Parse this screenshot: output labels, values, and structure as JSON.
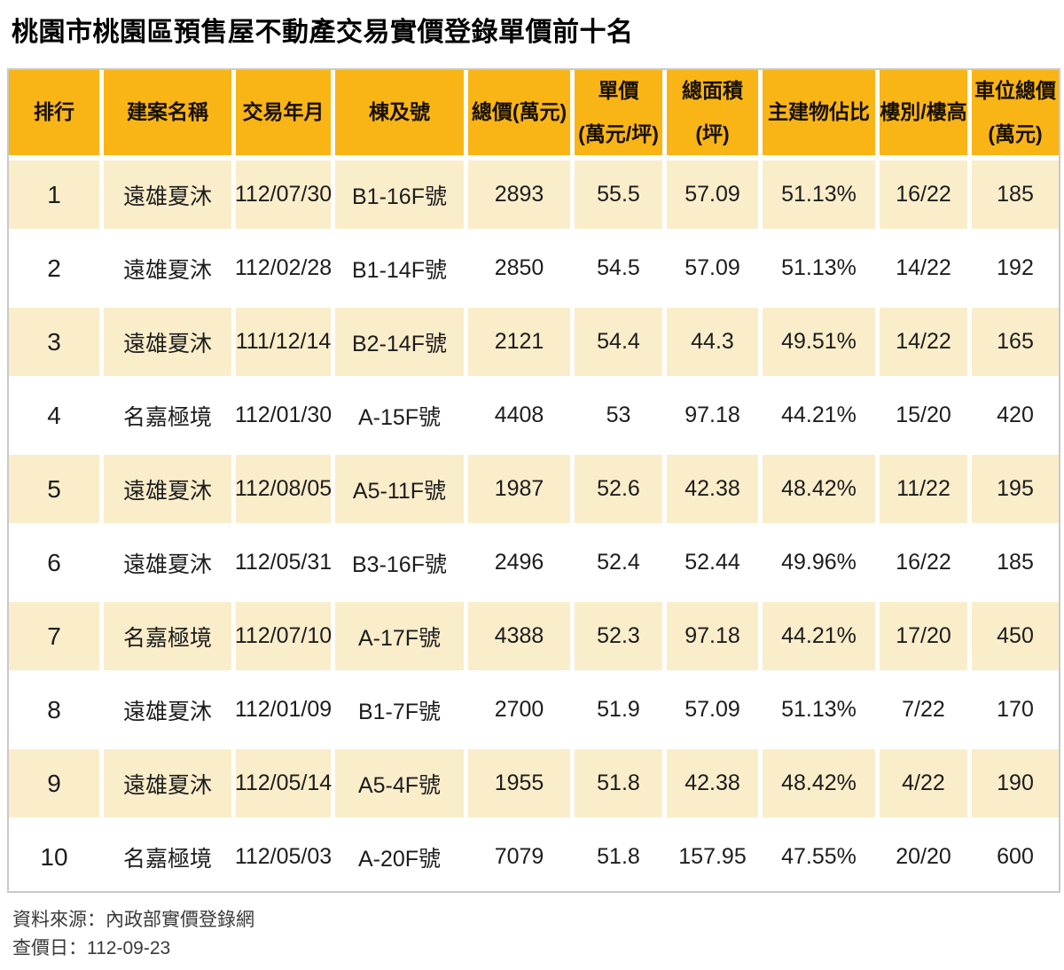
{
  "chart_data": {
    "type": "table",
    "title": "桃園市桃園區預售屋不動產交易實價登錄單價前十名",
    "columns": [
      "排行",
      "建案名稱",
      "交易年月",
      "棟及號",
      "總價(萬元)",
      "單價\n(萬元/坪)",
      "總面積\n(坪)",
      "主建物佔比",
      "樓別/樓高",
      "車位總價\n(萬元)"
    ],
    "rows": [
      [
        "1",
        "遠雄夏沐",
        "112/07/30",
        "B1-16F號",
        "2893",
        "55.5",
        "57.09",
        "51.13%",
        "16/22",
        "185"
      ],
      [
        "2",
        "遠雄夏沐",
        "112/02/28",
        "B1-14F號",
        "2850",
        "54.5",
        "57.09",
        "51.13%",
        "14/22",
        "192"
      ],
      [
        "3",
        "遠雄夏沐",
        "111/12/14",
        "B2-14F號",
        "2121",
        "54.4",
        "44.3",
        "49.51%",
        "14/22",
        "165"
      ],
      [
        "4",
        "名嘉極境",
        "112/01/30",
        "A-15F號",
        "4408",
        "53",
        "97.18",
        "44.21%",
        "15/20",
        "420"
      ],
      [
        "5",
        "遠雄夏沐",
        "112/08/05",
        "A5-11F號",
        "1987",
        "52.6",
        "42.38",
        "48.42%",
        "11/22",
        "195"
      ],
      [
        "6",
        "遠雄夏沐",
        "112/05/31",
        "B3-16F號",
        "2496",
        "52.4",
        "52.44",
        "49.96%",
        "16/22",
        "185"
      ],
      [
        "7",
        "名嘉極境",
        "112/07/10",
        "A-17F號",
        "4388",
        "52.3",
        "97.18",
        "44.21%",
        "17/20",
        "450"
      ],
      [
        "8",
        "遠雄夏沐",
        "112/01/09",
        "B1-7F號",
        "2700",
        "51.9",
        "57.09",
        "51.13%",
        "7/22",
        "170"
      ],
      [
        "9",
        "遠雄夏沐",
        "112/05/14",
        "A5-4F號",
        "1955",
        "51.8",
        "42.38",
        "48.42%",
        "4/22",
        "190"
      ],
      [
        "10",
        "名嘉極境",
        "112/05/03",
        "A-20F號",
        "7079",
        "51.8",
        "157.95",
        "47.55%",
        "20/20",
        "600"
      ]
    ]
  },
  "footer": {
    "source_label": "資料來源：內政部實價登錄網",
    "query_date_label": "查價日：112-09-23"
  },
  "colors": {
    "header_bg": "#F9B515",
    "alt_row_bg": "#FAEDCA",
    "table_border": "#C9C9C9"
  }
}
